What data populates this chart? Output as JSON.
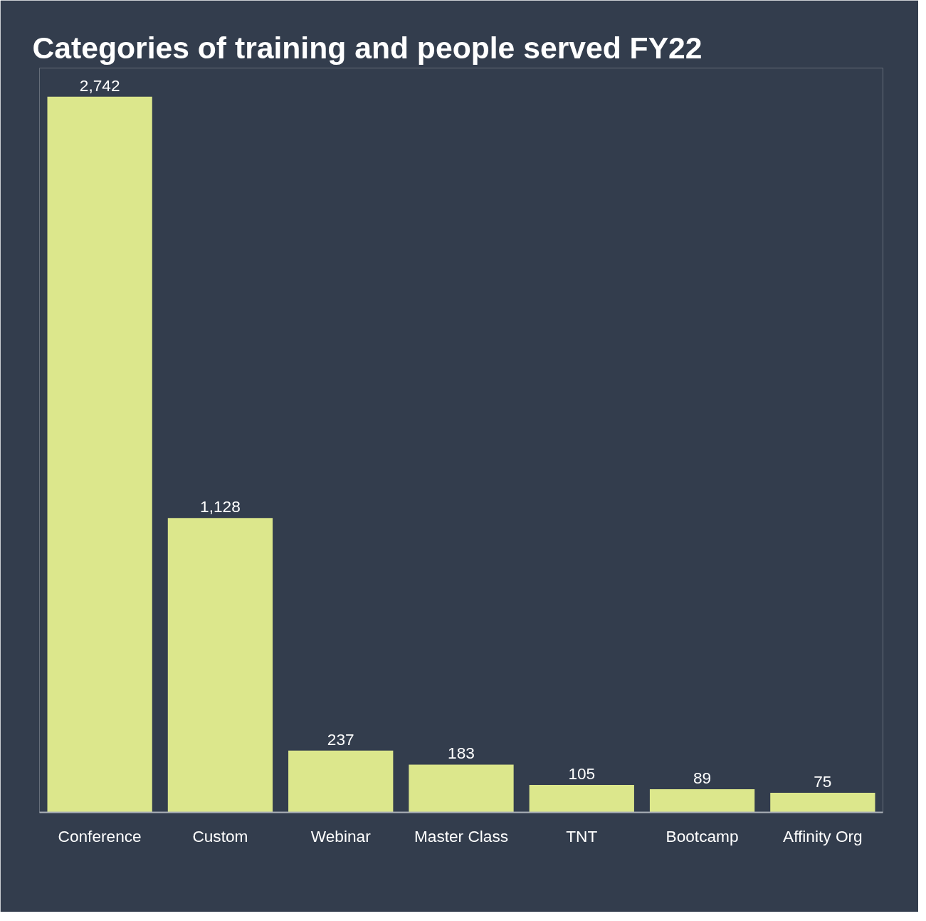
{
  "chart_data": {
    "type": "bar",
    "title": "Categories of training and people served FY22",
    "categories": [
      "Conference",
      "Custom",
      "Webinar",
      "Master Class",
      "TNT",
      "Bootcamp",
      "Affinity Org"
    ],
    "values": [
      2742,
      1128,
      237,
      183,
      105,
      89,
      75
    ],
    "value_labels": [
      "2,742",
      "1,128",
      "237",
      "183",
      "105",
      "89",
      "75"
    ],
    "color": "#dce78c",
    "grid": false
  }
}
